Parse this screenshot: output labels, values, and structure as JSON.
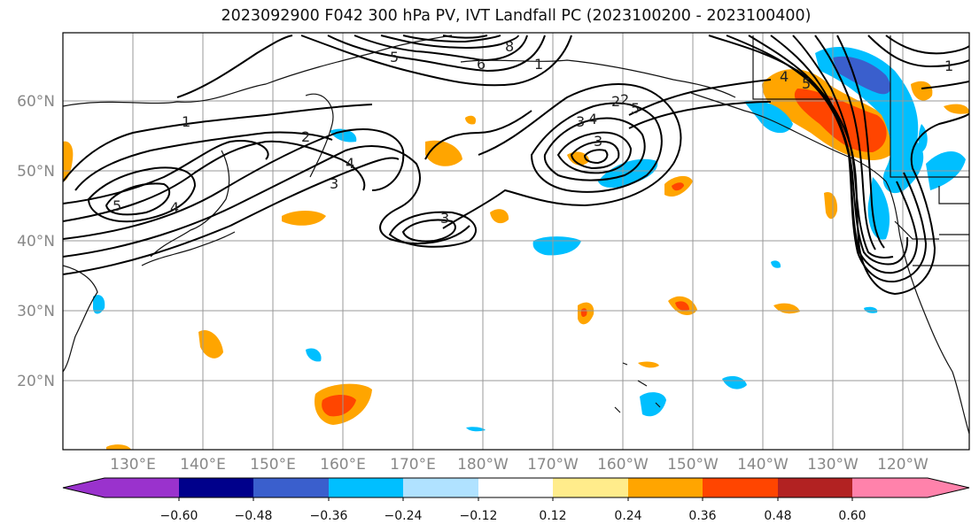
{
  "title": "2023092900 F042 300 hPa PV, IVT Landfall PC (2023100200 - 2023100400)",
  "lat_labels": [
    "60°N",
    "50°N",
    "40°N",
    "30°N",
    "20°N"
  ],
  "lon_labels": [
    "130°E",
    "140°E",
    "150°E",
    "160°E",
    "170°E",
    "180°W",
    "170°W",
    "160°W",
    "150°W",
    "140°W",
    "130°W",
    "120°W"
  ],
  "contour_labels": [
    "1",
    "2",
    "3",
    "4",
    "5",
    "4",
    "3",
    "2",
    "5",
    "6",
    "8",
    "1",
    "2",
    "3",
    "4",
    "5",
    "3",
    "4",
    "5",
    "1"
  ],
  "colorbar": {
    "ticks": [
      "−0.60",
      "−0.48",
      "−0.36",
      "−0.24",
      "−0.12",
      "0.12",
      "0.24",
      "0.36",
      "0.48",
      "0.60"
    ],
    "colors": [
      "#9a32cd",
      "#00008b",
      "#3a5fcd",
      "#00bfff",
      "#b0e2ff",
      "#ffffff",
      "#ffec8b",
      "#ffa500",
      "#ff4500",
      "#b22222",
      "#ff82ab"
    ]
  }
}
